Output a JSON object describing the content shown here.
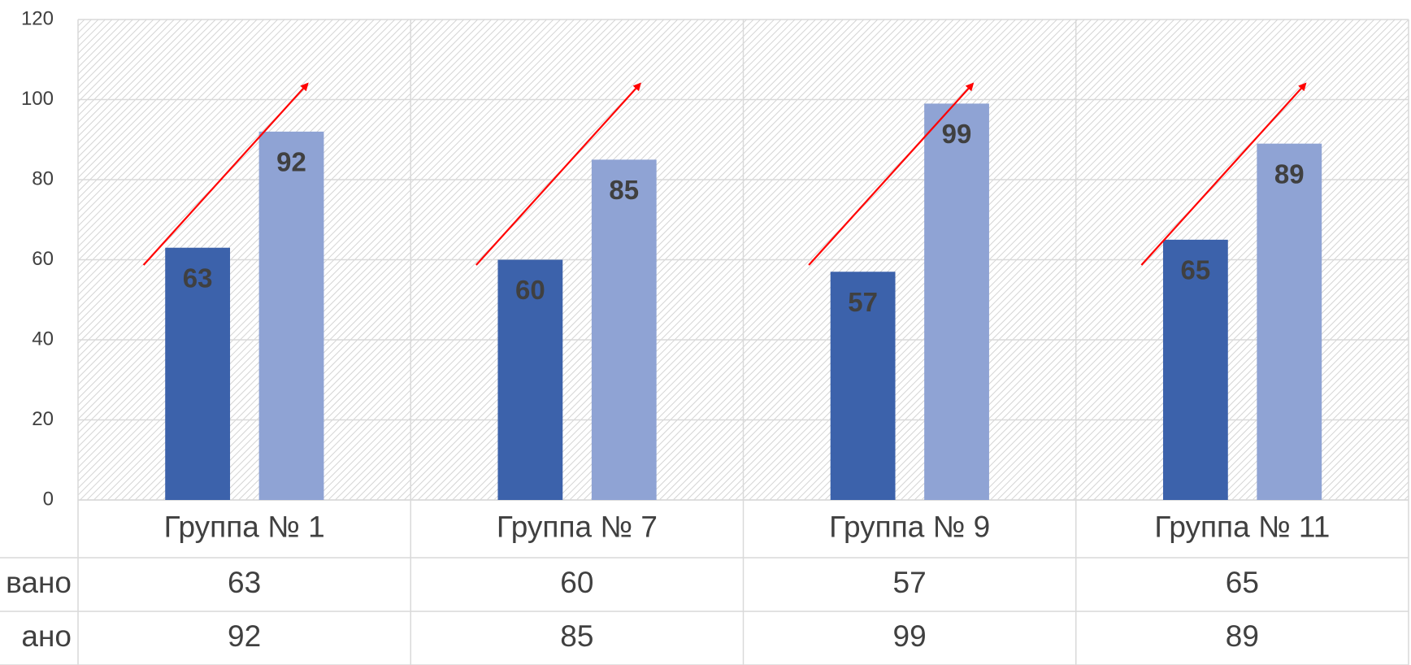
{
  "chart_data": {
    "type": "bar",
    "categories": [
      "Группа № 1",
      "Группа № 7",
      "Группа № 9",
      "Группа № 11"
    ],
    "series": [
      {
        "name": "вано",
        "color": "#3c62ab",
        "values": [
          63,
          60,
          57,
          65
        ]
      },
      {
        "name": "ано",
        "color": "#8fa3d4",
        "values": [
          92,
          85,
          99,
          89
        ]
      }
    ],
    "ylim": [
      0,
      120
    ],
    "yticks": [
      0,
      20,
      40,
      60,
      80,
      100,
      120
    ],
    "grid": true
  }
}
